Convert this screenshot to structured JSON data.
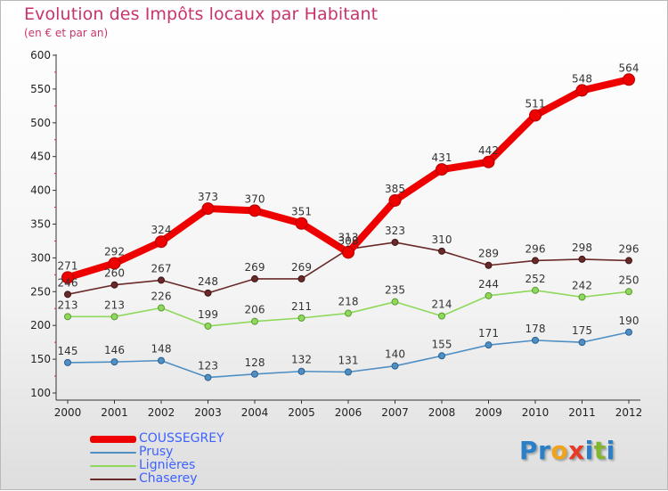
{
  "title": "Evolution des Impôts locaux par Habitant",
  "subtitle": "(en € et par an)",
  "logo": {
    "letters": [
      "P",
      "r",
      "o",
      "x",
      "i",
      "t",
      "i"
    ],
    "colors": [
      "#2a7fc8",
      "#2a7fc8",
      "#f2a21c",
      "#e83a28",
      "#2a7fc8",
      "#84b52c",
      "#2a7fc8"
    ]
  },
  "chart_data": {
    "type": "line",
    "x": [
      "2000",
      "2001",
      "2002",
      "2003",
      "2004",
      "2005",
      "2006",
      "2007",
      "2008",
      "2009",
      "2010",
      "2011",
      "2012"
    ],
    "ylim": [
      100,
      600
    ],
    "yticks": [
      "100",
      "150",
      "200",
      "250",
      "300",
      "350",
      "400",
      "450",
      "500",
      "550",
      "600"
    ],
    "grid": false,
    "legend_position": "bottom-left",
    "series": [
      {
        "name": "COUSSEGREY",
        "color": "#ee0000",
        "values": [
          271,
          292,
          324,
          373,
          370,
          351,
          308,
          385,
          431,
          442,
          511,
          548,
          564
        ],
        "labels": [
          "271",
          "292",
          "324",
          "373",
          "370",
          "351",
          "308",
          "385",
          "431",
          "442",
          "511",
          "548",
          "564"
        ]
      },
      {
        "name": "Prusy",
        "color": "#4f8fc4",
        "values": [
          145,
          146,
          148,
          123,
          128,
          132,
          131,
          140,
          155,
          171,
          178,
          175,
          190
        ],
        "labels": [
          "145",
          "146",
          "148",
          "123",
          "128",
          "132",
          "131",
          "140",
          "155",
          "171",
          "178",
          "175",
          "190"
        ]
      },
      {
        "name": "Lignières",
        "color": "#8ed85b",
        "values": [
          213,
          213,
          226,
          199,
          206,
          211,
          218,
          235,
          214,
          244,
          252,
          242,
          250
        ],
        "labels": [
          "213",
          "213",
          "226",
          "199",
          "206",
          "211",
          "218",
          "235",
          "214",
          "244",
          "252",
          "242",
          "250"
        ]
      },
      {
        "name": "Chaserey",
        "color": "#6b2a2a",
        "values": [
          246,
          260,
          267,
          248,
          269,
          269,
          313,
          323,
          310,
          289,
          296,
          298,
          296
        ],
        "labels": [
          "246",
          "260",
          "267",
          "248",
          "269",
          "269",
          "313",
          "323",
          "310",
          "289",
          "296",
          "298",
          "296"
        ]
      }
    ]
  }
}
